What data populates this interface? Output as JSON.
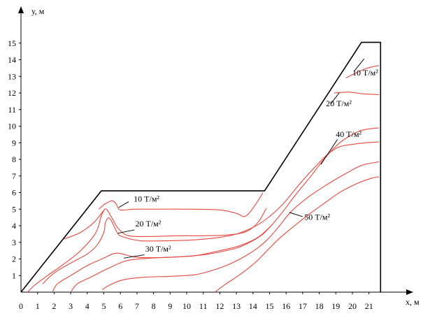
{
  "chart_data": {
    "type": "line",
    "xlabel": "x, м",
    "ylabel": "у, м",
    "x_ticks": [
      "0",
      "1",
      "2",
      "3",
      "4",
      "5",
      "6",
      "7",
      "8",
      "9",
      "10",
      "11",
      "12",
      "13",
      "14",
      "15",
      "16",
      "17",
      "18",
      "19",
      "20",
      "21"
    ],
    "y_ticks": [
      "1",
      "2",
      "3",
      "4",
      "5",
      "6",
      "7",
      "8",
      "9",
      "10",
      "11",
      "12",
      "13",
      "14",
      "15"
    ],
    "xlim": [
      0,
      23.3
    ],
    "ylim": [
      0,
      16.8
    ],
    "outline": {
      "color": "#000000",
      "points": [
        [
          0,
          0
        ],
        [
          4.85,
          6.1
        ],
        [
          14.7,
          6.1
        ],
        [
          20.55,
          15.05
        ],
        [
          21.7,
          15.05
        ],
        [
          21.7,
          0
        ]
      ]
    },
    "series": [
      {
        "label": "10 Т/м²",
        "color": "#e8473f",
        "points": [
          [
            4.7,
            5.0
          ],
          [
            5.05,
            5.3
          ],
          [
            5.5,
            5.5
          ],
          [
            5.75,
            5.3
          ],
          [
            6.0,
            4.95
          ],
          [
            6.8,
            5.0
          ],
          [
            8,
            5.0
          ],
          [
            10,
            5.0
          ],
          [
            12,
            4.95
          ],
          [
            13,
            4.75
          ],
          [
            13.45,
            4.55
          ],
          [
            13.8,
            4.8
          ],
          [
            14.3,
            5.5
          ],
          [
            14.6,
            6.0
          ]
        ]
      },
      {
        "label": "20 Т/м²",
        "color": "#e8473f",
        "points": [
          [
            2.6,
            3.2
          ],
          [
            3.6,
            3.6
          ],
          [
            4.4,
            4.2
          ],
          [
            4.9,
            4.8
          ],
          [
            5.15,
            5.0
          ],
          [
            5.5,
            4.45
          ],
          [
            5.9,
            3.8
          ],
          [
            6.5,
            3.4
          ],
          [
            7.8,
            3.35
          ],
          [
            9.5,
            3.4
          ],
          [
            11,
            3.4
          ],
          [
            12.5,
            3.45
          ],
          [
            13.6,
            3.65
          ],
          [
            14.3,
            4.2
          ],
          [
            14.8,
            5.05
          ]
        ]
      },
      {
        "label": "30 Т/м²",
        "color": "#e8473f",
        "points": [
          [
            1.3,
            0.5
          ],
          [
            2.0,
            1.15
          ],
          [
            3.0,
            1.75
          ],
          [
            4.0,
            2.3
          ],
          [
            4.6,
            2.85
          ],
          [
            5.0,
            3.6
          ],
          [
            5.1,
            4.2
          ],
          [
            5.35,
            4.45
          ],
          [
            5.8,
            3.6
          ],
          [
            6.1,
            3.35
          ],
          [
            7.2,
            3.1
          ],
          [
            9,
            3.1
          ],
          [
            10.5,
            3.15
          ],
          [
            12.0,
            3.3
          ],
          [
            13.0,
            3.5
          ],
          [
            14.0,
            3.9
          ],
          [
            14.8,
            4.4
          ],
          [
            15.8,
            5.3
          ],
          [
            16.8,
            6.5
          ],
          [
            17.8,
            7.6
          ],
          [
            18.5,
            8.3
          ],
          [
            19.2,
            8.75
          ],
          [
            20.0,
            8.9
          ],
          [
            20.8,
            9.0
          ],
          [
            21.6,
            9.05
          ]
        ]
      },
      {
        "label": "40 Т/м²",
        "color": "#e8473f",
        "points": [
          [
            0.4,
            0.0
          ],
          [
            0.8,
            0.4
          ],
          [
            1.6,
            1.0
          ],
          [
            2.6,
            1.7
          ],
          [
            3.6,
            2.5
          ],
          [
            4.5,
            3.55
          ],
          [
            4.85,
            4.6
          ],
          [
            5.0,
            4.9
          ]
        ]
      },
      {
        "label": "",
        "color": "#e8473f",
        "points": [
          [
            1.9,
            0.0
          ],
          [
            2.2,
            0.5
          ],
          [
            3.0,
            1.0
          ],
          [
            4.0,
            1.6
          ],
          [
            5.0,
            2.05
          ],
          [
            5.8,
            2.35
          ],
          [
            7.0,
            2.1
          ],
          [
            9,
            2.1
          ],
          [
            11,
            2.25
          ],
          [
            12.6,
            2.55
          ],
          [
            13.5,
            2.85
          ],
          [
            14.6,
            3.5
          ],
          [
            15.6,
            4.6
          ],
          [
            16.6,
            5.9
          ],
          [
            17.5,
            7.0
          ],
          [
            18.4,
            8.15
          ],
          [
            19.3,
            9.05
          ],
          [
            20.2,
            9.6
          ],
          [
            20.8,
            9.8
          ],
          [
            21.6,
            9.9
          ]
        ]
      },
      {
        "label": "",
        "color": "#e8473f",
        "points": [
          [
            3.0,
            0.0
          ],
          [
            3.4,
            0.5
          ],
          [
            4.2,
            0.9
          ],
          [
            5.2,
            1.4
          ],
          [
            6.4,
            1.9
          ],
          [
            7.8,
            2.05
          ],
          [
            9,
            2.1
          ],
          [
            10.5,
            2.2
          ],
          [
            12,
            2.5
          ],
          [
            13.2,
            2.8
          ],
          [
            14.3,
            3.3
          ],
          [
            15.2,
            4.1
          ]
        ]
      },
      {
        "label": "",
        "color": "#e8473f",
        "points": [
          [
            4.9,
            0.15
          ],
          [
            5.4,
            0.45
          ],
          [
            6.2,
            0.75
          ],
          [
            7.5,
            0.9
          ],
          [
            9,
            0.95
          ],
          [
            10.5,
            1.05
          ],
          [
            11.5,
            1.3
          ],
          [
            12.5,
            1.65
          ],
          [
            13.5,
            2.15
          ],
          [
            14.4,
            2.75
          ],
          [
            15.0,
            3.3
          ],
          [
            15.6,
            4.0
          ],
          [
            16.3,
            4.85
          ],
          [
            17.3,
            5.7
          ],
          [
            18.5,
            6.5
          ],
          [
            19.7,
            7.2
          ],
          [
            20.6,
            7.65
          ],
          [
            21.6,
            7.85
          ]
        ]
      },
      {
        "label": "50 Т/м²",
        "color": "#e8473f",
        "points": [
          [
            11.7,
            0.0
          ],
          [
            12.3,
            0.45
          ],
          [
            13.2,
            1.05
          ],
          [
            14.1,
            1.75
          ],
          [
            14.9,
            2.55
          ],
          [
            15.5,
            3.15
          ],
          [
            16.2,
            3.75
          ],
          [
            17.2,
            4.55
          ],
          [
            18.3,
            5.35
          ],
          [
            19.3,
            6.05
          ],
          [
            20.3,
            6.55
          ],
          [
            21.1,
            6.85
          ],
          [
            21.6,
            6.95
          ]
        ]
      },
      {
        "label": "",
        "color": "#e8473f",
        "points": [
          [
            19.6,
            12.9
          ],
          [
            20.2,
            13.2
          ],
          [
            20.9,
            13.5
          ],
          [
            21.6,
            13.65
          ]
        ]
      },
      {
        "label": "",
        "color": "#e8473f",
        "points": [
          [
            18.9,
            12.0
          ],
          [
            19.8,
            12.05
          ],
          [
            20.6,
            11.95
          ],
          [
            21.6,
            11.9
          ]
        ]
      }
    ],
    "annotations": [
      {
        "text": "10 Т/м²",
        "at": [
          6.8,
          5.45
        ],
        "leader_from": [
          6.5,
          5.45
        ],
        "leader_to": [
          5.9,
          5.1
        ]
      },
      {
        "text": "20 Т/м²",
        "at": [
          6.9,
          3.95
        ],
        "leader_from": [
          6.85,
          3.75
        ],
        "leader_to": [
          5.85,
          3.55
        ]
      },
      {
        "text": "30 Т/м²",
        "at": [
          7.5,
          2.45
        ],
        "leader_from": [
          7.45,
          2.25
        ],
        "leader_to": [
          6.2,
          2.05
        ]
      },
      {
        "text": "10 Т/м²",
        "at": [
          20.0,
          13.05
        ],
        "leader_from": [
          20.1,
          13.3
        ],
        "leader_to": [
          20.7,
          14.05
        ]
      },
      {
        "text": "20 Т/м²",
        "at": [
          18.4,
          11.2
        ],
        "leader_from": [
          18.7,
          11.35
        ],
        "leader_to": [
          19.2,
          12.0
        ]
      },
      {
        "text": "40 Т/м²",
        "at": [
          19.0,
          9.35
        ],
        "leader_from": [
          19.1,
          9.2
        ],
        "leader_to": [
          18.1,
          7.7
        ]
      },
      {
        "text": "50 Т/м²",
        "at": [
          17.1,
          4.35
        ],
        "leader_from": [
          17.0,
          4.55
        ],
        "leader_to": [
          16.2,
          4.8
        ]
      }
    ]
  }
}
